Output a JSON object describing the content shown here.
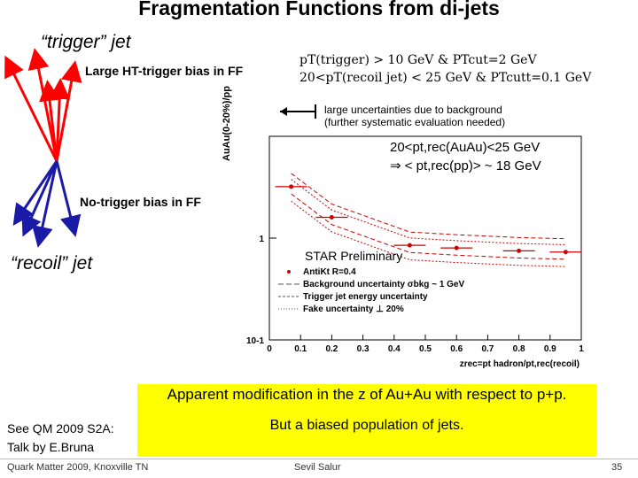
{
  "slide": {
    "title": "Fragmentation Functions from di-jets",
    "trigger_jet": "“trigger” jet",
    "recoil_jet": "“recoil” jet",
    "trigger_bias": "Large HT-trigger bias in FF",
    "no_trigger_bias": "No-trigger bias in FF",
    "cut_line1": "pT(trigger) > 10 GeV & PTcut=2 GeV",
    "cut_line2": "20<pT(recoil jet) < 25 GeV & PTcutt=0.1 GeV",
    "note_line1": "large uncertainties due to background",
    "note_line2": "(further systematic evaluation needed)",
    "range_line1": "20<pt,rec(AuAu)<25 GeV",
    "range_line2": "⇒ < pt,rec(pp)> ~ 18 GeV",
    "star_preliminary": "STAR Preliminary",
    "box_line1": "Apparent modification in the z of Au+Au with respect to p+p.",
    "box_line2": "But a biased population of jets.",
    "see_line1": "See QM 2009 S2A:",
    "see_line2": "Talk by E.Bruna",
    "footer_left": "Quark Matter 2009, Knoxville TN",
    "footer_center": "Sevil Salur",
    "page_number": "35"
  },
  "chart_data": {
    "type": "line",
    "title": "",
    "xlabel": "zrec=pt hadron/pt,rec(recoil)",
    "ylabel": "AuAu(0-20%)/pp",
    "xlim": [
      0,
      1
    ],
    "ylim_log": [
      0.1,
      10
    ],
    "x_ticks": [
      "0",
      "0.1",
      "0.2",
      "0.3",
      "0.4",
      "0.5",
      "0.6",
      "0.7",
      "0.8",
      "0.9",
      "1"
    ],
    "y_ticks": [
      "10-1",
      "1"
    ],
    "series": [
      {
        "name": "AntiKt R=0.4",
        "x": [
          0.07,
          0.2,
          0.45,
          0.6,
          0.8,
          0.95
        ],
        "y": [
          3.2,
          1.6,
          0.85,
          0.8,
          0.75,
          0.73
        ]
      }
    ],
    "legend": [
      "AntiKt R=0.4",
      "Background uncertainty σbkg ~ 1 GeV",
      "Trigger jet energy uncertainty",
      "Fake uncertainty ⊥ 20%"
    ],
    "colors": {
      "data": "#cc0000",
      "arrow": "#ff0000",
      "recoil_arrow": "#1a1aa8",
      "box": "#ffff00"
    }
  }
}
